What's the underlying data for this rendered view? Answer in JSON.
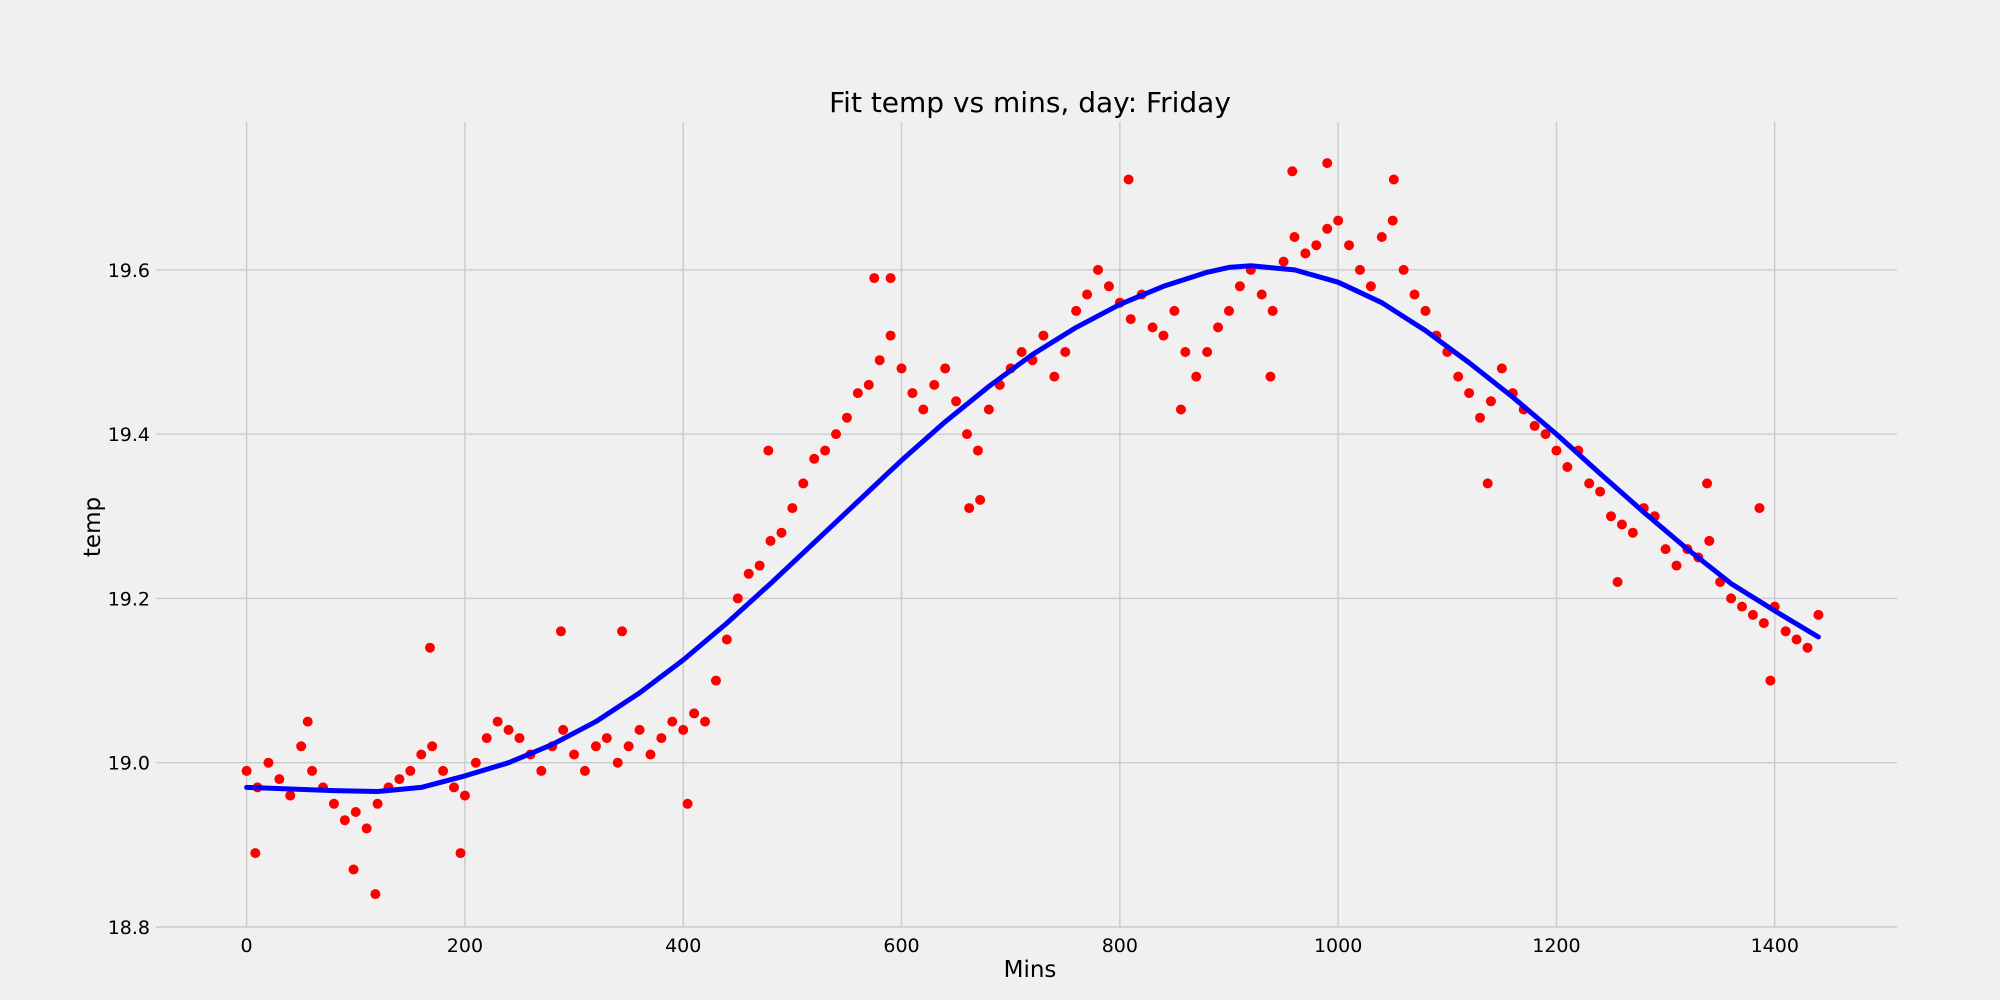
{
  "chart_data": {
    "type": "scatter",
    "title": "Fit temp vs mins, day: Friday",
    "xlabel": "Mins",
    "ylabel": "temp",
    "xlim": [
      -83,
      1512
    ],
    "ylim": [
      18.8,
      19.78
    ],
    "x_ticks": [
      0,
      200,
      400,
      600,
      800,
      1000,
      1200,
      1400
    ],
    "x_tick_labels": [
      "0",
      "200",
      "400",
      "600",
      "800",
      "1000",
      "1200",
      "1400"
    ],
    "y_ticks": [
      18.8,
      19.0,
      19.2,
      19.4,
      19.6
    ],
    "y_tick_labels": [
      "18.8",
      "19.0",
      "19.2",
      "19.4",
      "19.6"
    ],
    "grid": true,
    "series": [
      {
        "kind": "scatter",
        "color": "#ff0000",
        "x": [
          0,
          10,
          20,
          30,
          40,
          50,
          60,
          70,
          80,
          90,
          100,
          110,
          120,
          130,
          140,
          150,
          160,
          170,
          180,
          190,
          200,
          210,
          220,
          230,
          240,
          250,
          260,
          270,
          280,
          290,
          300,
          310,
          320,
          330,
          340,
          350,
          360,
          370,
          380,
          390,
          400,
          410,
          420,
          430,
          440,
          450,
          460,
          470,
          480,
          490,
          500,
          510,
          520,
          530,
          540,
          550,
          560,
          570,
          580,
          590,
          600,
          610,
          620,
          630,
          640,
          650,
          660,
          670,
          680,
          690,
          700,
          710,
          720,
          730,
          740,
          750,
          760,
          770,
          780,
          790,
          800,
          810,
          820,
          830,
          840,
          850,
          860,
          870,
          880,
          890,
          900,
          910,
          920,
          930,
          940,
          950,
          960,
          970,
          980,
          990,
          1000,
          1010,
          1020,
          1030,
          1040,
          1050,
          1060,
          1070,
          1080,
          1090,
          1100,
          1110,
          1120,
          1130,
          1140,
          1150,
          1160,
          1170,
          1180,
          1190,
          1200,
          1210,
          1220,
          1230,
          1240,
          1250,
          1260,
          1270,
          1280,
          1290,
          1300,
          1310,
          1320,
          1330,
          1340,
          1350,
          1360,
          1370,
          1380,
          1390,
          1400,
          1410,
          1420,
          1430,
          1440,
          8,
          56,
          98,
          118,
          168,
          196,
          288,
          344,
          404,
          478,
          575,
          590,
          662,
          672,
          808,
          856,
          938,
          958,
          990,
          1051,
          1137,
          1256,
          1338,
          1386,
          1396
        ],
        "y": [
          18.99,
          18.97,
          19.0,
          18.98,
          18.96,
          19.02,
          18.99,
          18.97,
          18.95,
          18.93,
          18.94,
          18.92,
          18.95,
          18.97,
          18.98,
          18.99,
          19.01,
          19.02,
          18.99,
          18.97,
          18.96,
          19.0,
          19.03,
          19.05,
          19.04,
          19.03,
          19.01,
          18.99,
          19.02,
          19.04,
          19.01,
          18.99,
          19.02,
          19.03,
          19.0,
          19.02,
          19.04,
          19.01,
          19.03,
          19.05,
          19.04,
          19.06,
          19.05,
          19.1,
          19.15,
          19.2,
          19.23,
          19.24,
          19.27,
          19.28,
          19.31,
          19.34,
          19.37,
          19.38,
          19.4,
          19.42,
          19.45,
          19.46,
          19.49,
          19.52,
          19.48,
          19.45,
          19.43,
          19.46,
          19.48,
          19.44,
          19.4,
          19.38,
          19.43,
          19.46,
          19.48,
          19.5,
          19.49,
          19.52,
          19.47,
          19.5,
          19.55,
          19.57,
          19.6,
          19.58,
          19.56,
          19.54,
          19.57,
          19.53,
          19.52,
          19.55,
          19.5,
          19.47,
          19.5,
          19.53,
          19.55,
          19.58,
          19.6,
          19.57,
          19.55,
          19.61,
          19.64,
          19.62,
          19.63,
          19.65,
          19.66,
          19.63,
          19.6,
          19.58,
          19.64,
          19.66,
          19.6,
          19.57,
          19.55,
          19.52,
          19.5,
          19.47,
          19.45,
          19.42,
          19.44,
          19.48,
          19.45,
          19.43,
          19.41,
          19.4,
          19.38,
          19.36,
          19.38,
          19.34,
          19.33,
          19.3,
          19.29,
          19.28,
          19.31,
          19.3,
          19.26,
          19.24,
          19.26,
          19.25,
          19.27,
          19.22,
          19.2,
          19.19,
          19.18,
          19.17,
          19.19,
          19.16,
          19.15,
          19.14,
          19.18,
          18.89,
          19.05,
          18.87,
          18.84,
          19.14,
          18.89,
          19.16,
          19.16,
          18.95,
          19.38,
          19.59,
          19.59,
          19.31,
          19.32,
          19.71,
          19.43,
          19.47,
          19.72,
          19.73,
          19.71,
          19.34,
          19.22,
          19.34,
          19.31,
          19.1
        ]
      },
      {
        "kind": "line",
        "color": "#0000ff",
        "x": [
          0,
          40,
          80,
          120,
          160,
          200,
          240,
          280,
          320,
          360,
          400,
          440,
          480,
          520,
          560,
          600,
          640,
          680,
          720,
          760,
          800,
          840,
          880,
          900,
          920,
          960,
          1000,
          1040,
          1080,
          1120,
          1160,
          1200,
          1240,
          1280,
          1320,
          1360,
          1400,
          1440
        ],
        "y": [
          18.97,
          18.968,
          18.966,
          18.965,
          18.97,
          18.984,
          19.0,
          19.022,
          19.05,
          19.085,
          19.125,
          19.17,
          19.218,
          19.268,
          19.318,
          19.368,
          19.415,
          19.458,
          19.497,
          19.53,
          19.558,
          19.58,
          19.597,
          19.603,
          19.605,
          19.6,
          19.585,
          19.56,
          19.526,
          19.487,
          19.445,
          19.4,
          19.352,
          19.305,
          19.26,
          19.218,
          19.185,
          19.153
        ]
      }
    ]
  }
}
